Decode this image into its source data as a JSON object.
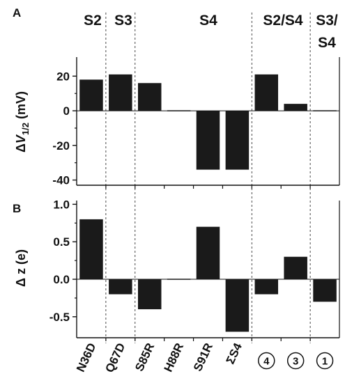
{
  "segment_labels": [
    {
      "text": "S2"
    },
    {
      "text": "S3"
    },
    {
      "text": "S4"
    },
    {
      "text": "S2/S4"
    },
    {
      "text": "S3/"
    },
    {
      "text": "S4"
    }
  ],
  "chart_data": [
    {
      "type": "bar",
      "panel": "A",
      "ylabel": {
        "prefix": "ΔV",
        "subscript": "1/2",
        "suffix": " (mV)"
      },
      "categories": [
        "N36D",
        "Q67D",
        "S85R",
        "H88R",
        "S91R",
        "ΣS4",
        "④",
        "③",
        "①"
      ],
      "values": [
        18,
        21,
        16,
        0,
        -34,
        -34,
        21,
        4,
        -0.5
      ],
      "ylim": [
        -43,
        31
      ],
      "yticks": [
        -40,
        -20,
        0,
        20
      ],
      "ytick_labels": [
        "-40",
        "-20",
        "0",
        "20"
      ],
      "bar_color": "#1a1a1a",
      "zero_line": true,
      "grid": false
    },
    {
      "type": "bar",
      "panel": "B",
      "ylabel": {
        "text": "Δ z (e)"
      },
      "categories": [
        "N36D",
        "Q67D",
        "S85R",
        "H88R",
        "S91R",
        "ΣS4",
        "④",
        "③",
        "①"
      ],
      "values": [
        0.8,
        -0.2,
        -0.4,
        0.0,
        0.7,
        -0.7,
        -0.2,
        0.3,
        -0.3
      ],
      "ylim": [
        -0.78,
        1.05
      ],
      "yticks": [
        -0.5,
        0.0,
        0.5,
        1.0
      ],
      "ytick_labels": [
        "-0.5",
        "0.0",
        "0.5",
        "1.0"
      ],
      "bar_color": "#1a1a1a",
      "zero_line": true,
      "grid": false
    }
  ]
}
